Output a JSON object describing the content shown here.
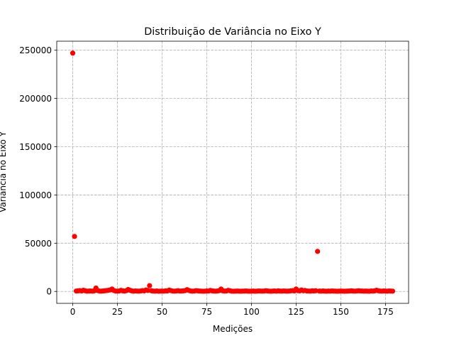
{
  "chart_data": {
    "type": "scatter",
    "title": "Distribuição de Variância no Eixo Y",
    "x_label": "Medições",
    "y_label": "Variância no Eixo Y",
    "color": "#ff0000",
    "grid": true,
    "xlim": [
      -8.95,
      187.95
    ],
    "xticks": [
      0,
      25,
      50,
      75,
      100,
      125,
      150,
      175
    ],
    "ylim": [
      -12350,
      259350
    ],
    "yticks": [
      0,
      50000,
      100000,
      150000,
      200000,
      250000
    ],
    "x": [
      0,
      1,
      2,
      3,
      4,
      5,
      6,
      7,
      8,
      9,
      10,
      11,
      12,
      13,
      14,
      15,
      16,
      17,
      18,
      19,
      20,
      21,
      22,
      23,
      24,
      25,
      26,
      27,
      28,
      29,
      30,
      31,
      32,
      33,
      34,
      35,
      36,
      37,
      38,
      39,
      40,
      41,
      42,
      43,
      44,
      45,
      46,
      47,
      48,
      49,
      50,
      51,
      52,
      53,
      54,
      55,
      56,
      57,
      58,
      59,
      60,
      61,
      62,
      63,
      64,
      65,
      66,
      67,
      68,
      69,
      70,
      71,
      72,
      73,
      74,
      75,
      76,
      77,
      78,
      79,
      80,
      81,
      82,
      83,
      84,
      85,
      86,
      87,
      88,
      89,
      90,
      91,
      92,
      93,
      94,
      95,
      96,
      97,
      98,
      99,
      100,
      101,
      102,
      103,
      104,
      105,
      106,
      107,
      108,
      109,
      110,
      111,
      112,
      113,
      114,
      115,
      116,
      117,
      118,
      119,
      120,
      121,
      122,
      123,
      124,
      125,
      126,
      127,
      128,
      129,
      130,
      131,
      132,
      133,
      134,
      135,
      136,
      137,
      138,
      139,
      140,
      141,
      142,
      143,
      144,
      145,
      146,
      147,
      148,
      149,
      150,
      151,
      152,
      153,
      154,
      155,
      156,
      157,
      158,
      159,
      160,
      161,
      162,
      163,
      164,
      165,
      166,
      167,
      168,
      169,
      170,
      171,
      172,
      173,
      174,
      175,
      176,
      177,
      178,
      179
    ],
    "values": [
      247000,
      57000,
      400,
      600,
      800,
      500,
      1200,
      700,
      300,
      400,
      500,
      300,
      600,
      3500,
      800,
      400,
      300,
      500,
      700,
      900,
      1200,
      1600,
      2500,
      900,
      400,
      300,
      500,
      1100,
      600,
      400,
      800,
      2000,
      1200,
      600,
      300,
      500,
      400,
      300,
      500,
      800,
      600,
      1500,
      1000,
      6000,
      700,
      400,
      300,
      500,
      200,
      300,
      400,
      300,
      600,
      500,
      1400,
      800,
      400,
      300,
      500,
      700,
      400,
      500,
      600,
      900,
      1800,
      1000,
      500,
      300,
      400,
      800,
      600,
      400,
      300,
      200,
      300,
      500,
      400,
      1000,
      600,
      400,
      300,
      500,
      800,
      2500,
      600,
      400,
      500,
      1100,
      700,
      300,
      200,
      300,
      400,
      300,
      200,
      300,
      400,
      500,
      300,
      200,
      300,
      400,
      200,
      300,
      500,
      400,
      300,
      400,
      700,
      500,
      300,
      200,
      400,
      500,
      300,
      600,
      400,
      300,
      500,
      400,
      300,
      400,
      600,
      800,
      500,
      2500,
      800,
      600,
      1500,
      700,
      1000,
      500,
      400,
      300,
      600,
      500,
      700,
      41500,
      400,
      300,
      500,
      300,
      200,
      400,
      300,
      500,
      400,
      300,
      200,
      300,
      400,
      300,
      200,
      300,
      400,
      500,
      600,
      400,
      300,
      500,
      700,
      500,
      400,
      300,
      400,
      300,
      200,
      500,
      400,
      600,
      1200,
      700,
      400,
      300,
      500,
      400,
      300,
      500,
      400,
      300
    ]
  }
}
